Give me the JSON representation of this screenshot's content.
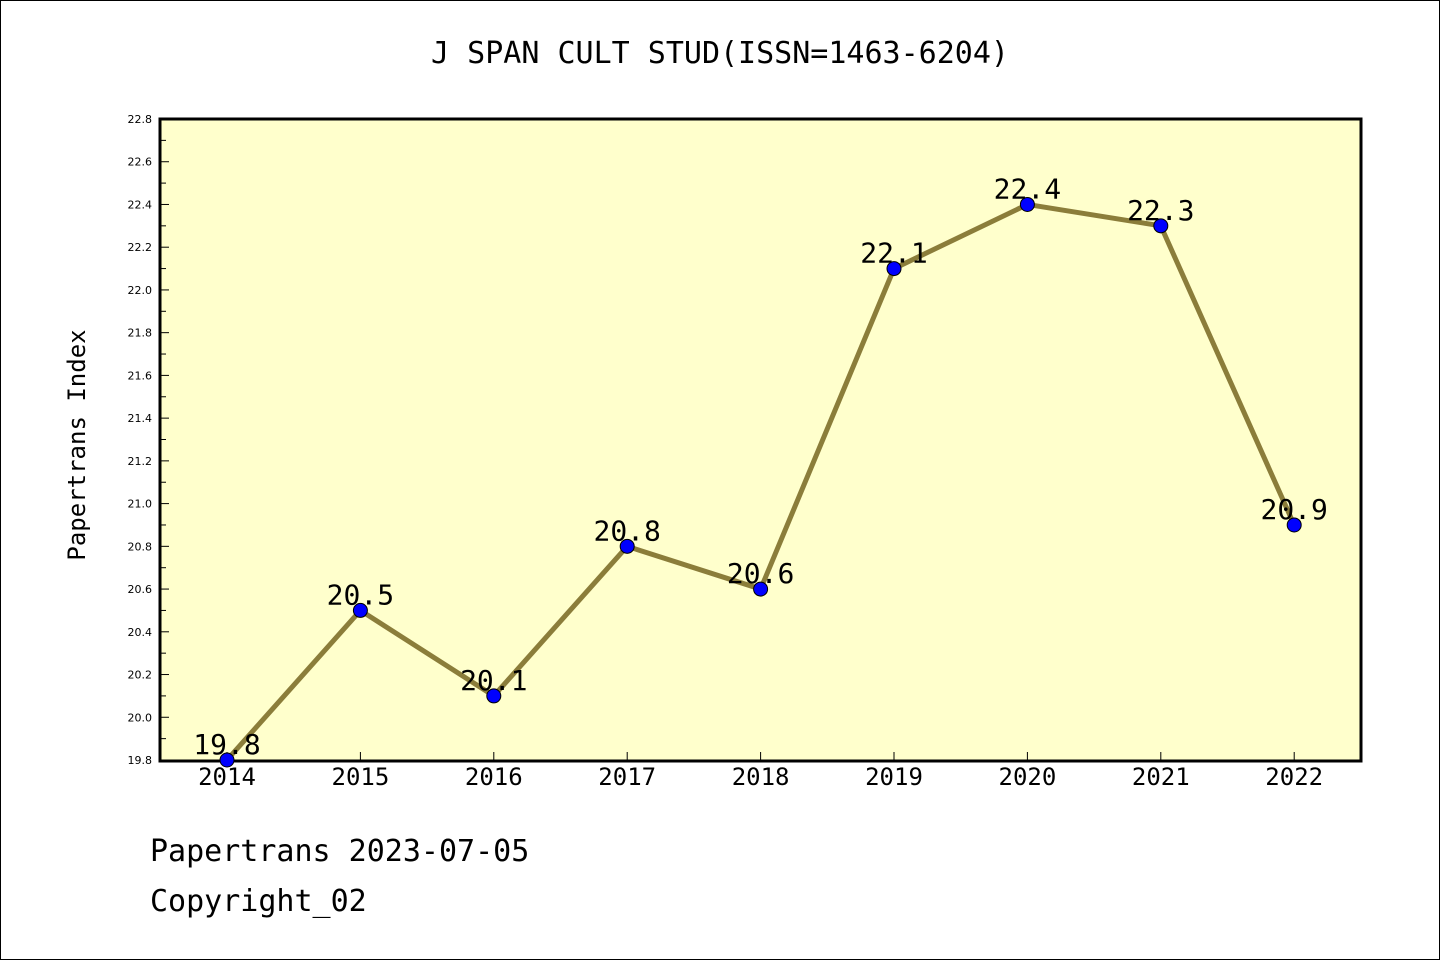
{
  "chart_data": {
    "type": "line",
    "title": "J SPAN CULT STUD(ISSN=1463-6204)",
    "ylabel": "Papertrans Index",
    "xlabel": "",
    "categories": [
      "2014",
      "2015",
      "2016",
      "2017",
      "2018",
      "2019",
      "2020",
      "2021",
      "2022"
    ],
    "series": [
      {
        "values": [
          19.8,
          20.5,
          20.1,
          20.8,
          20.6,
          22.1,
          22.4,
          22.3,
          20.9
        ]
      }
    ],
    "data_labels": [
      "19.8",
      "20.5",
      "20.1",
      "20.8",
      "20.6",
      "22.1",
      "22.4",
      "22.3",
      "20.9"
    ],
    "ylim": [
      19.8,
      22.8
    ],
    "yticks": [
      "19.8",
      "20.0",
      "20.2",
      "20.4",
      "20.6",
      "20.8",
      "21.0",
      "21.2",
      "21.4",
      "21.6",
      "21.8",
      "22.0",
      "22.2",
      "22.4",
      "22.6",
      "22.8"
    ],
    "grid": false,
    "colors": {
      "plot_background": "#ffffcc",
      "line": "#8b7d3a",
      "marker": "#0000ff",
      "axis": "#000000"
    }
  },
  "footer": {
    "source": "Papertrans 2023-07-05",
    "copyright": "Copyright_02"
  }
}
